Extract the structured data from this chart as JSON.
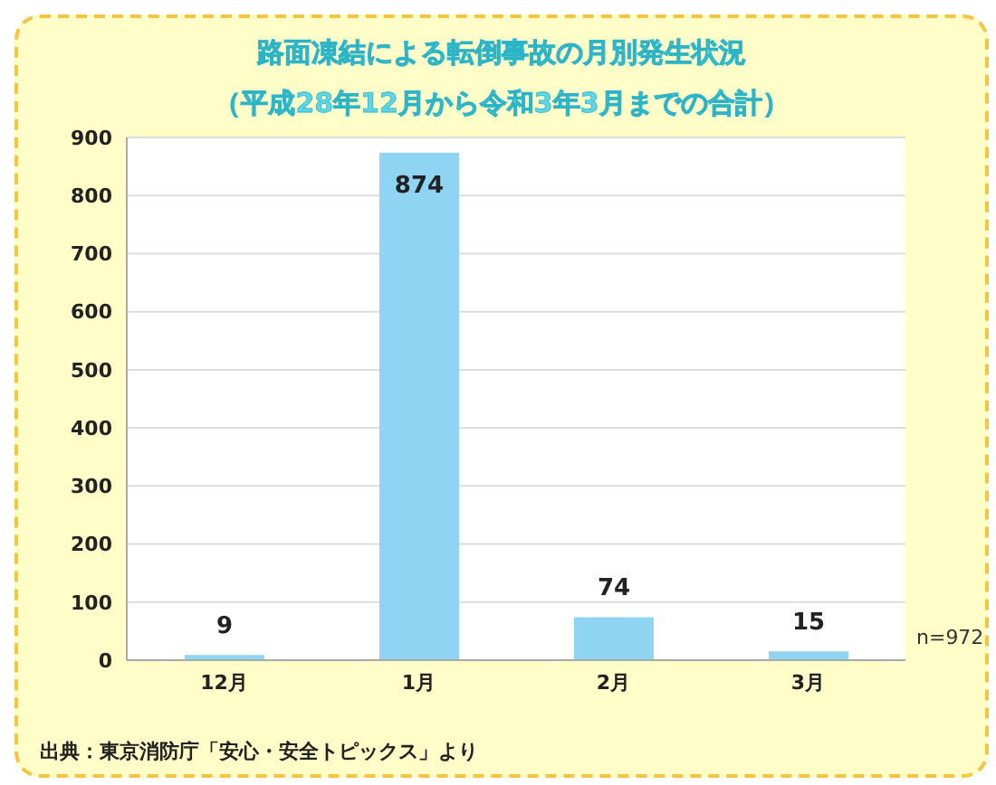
{
  "chart_data": {
    "type": "bar",
    "title": "路面凍結による転倒事故の月別発生状況",
    "subtitle": "（平成28年12月から令和3年3月までの合計）",
    "categories": [
      "12月",
      "1月",
      "2月",
      "3月"
    ],
    "values": [
      9,
      874,
      74,
      15
    ],
    "color": "#8fd5f3",
    "ylim": [
      0,
      900
    ],
    "yticks": [
      0,
      100,
      200,
      300,
      400,
      500,
      600,
      700,
      800,
      900
    ],
    "grid": "y",
    "data_labels": true,
    "annotations": [
      "n=972",
      "出典：東京消防庁「安心・安全トピックス」より"
    ]
  }
}
